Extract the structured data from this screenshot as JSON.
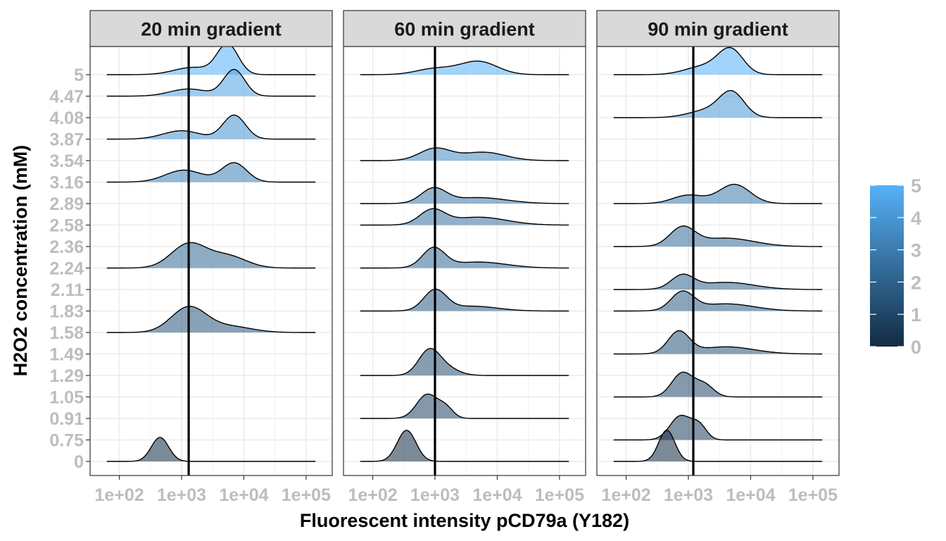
{
  "chart_data": {
    "type": "ridgeline",
    "xlabel": "Fluorescent intensity pCD79a (Y182)",
    "ylabel": "H2O2 concentration (mM)",
    "x_scale": "log10",
    "x_ticks": [
      "1e+02",
      "1e+03",
      "1e+04",
      "1e+05"
    ],
    "y_levels": [
      "0",
      "0.75",
      "0.91",
      "1.05",
      "1.29",
      "1.49",
      "1.58",
      "1.83",
      "2.11",
      "2.24",
      "2.36",
      "2.58",
      "2.89",
      "3.16",
      "3.54",
      "3.87",
      "4.08",
      "4.47",
      "5"
    ],
    "fill_scale": {
      "ticks": [
        "0",
        "1",
        "2",
        "3",
        "4",
        "5"
      ],
      "min": 0,
      "max": 5,
      "low_color": "#132B43",
      "high_color": "#56B1F7"
    },
    "grid": true,
    "legend_position": "right",
    "panels": [
      {
        "title": "20 min gradient",
        "vline_x": 1300,
        "ridges": [
          {
            "y": "0",
            "peaks": [
              {
                "x": 450,
                "h": 1.0,
                "w": 0.14
              }
            ]
          },
          {
            "y": "1.58",
            "peaks": [
              {
                "x": 1300,
                "h": 1.05,
                "w": 0.28
              },
              {
                "x": 6000,
                "h": 0.25,
                "w": 0.35
              }
            ]
          },
          {
            "y": "2.24",
            "peaks": [
              {
                "x": 1300,
                "h": 1.0,
                "w": 0.28
              },
              {
                "x": 5500,
                "h": 0.5,
                "w": 0.3
              }
            ]
          },
          {
            "y": "3.16",
            "peaks": [
              {
                "x": 1100,
                "h": 0.5,
                "w": 0.3
              },
              {
                "x": 7000,
                "h": 0.8,
                "w": 0.2
              }
            ]
          },
          {
            "y": "3.87",
            "peaks": [
              {
                "x": 1000,
                "h": 0.35,
                "w": 0.3
              },
              {
                "x": 7000,
                "h": 1.0,
                "w": 0.18
              }
            ]
          },
          {
            "y": "4.47",
            "peaks": [
              {
                "x": 1300,
                "h": 0.3,
                "w": 0.3
              },
              {
                "x": 7000,
                "h": 1.1,
                "w": 0.17
              }
            ]
          },
          {
            "y": "5",
            "peaks": [
              {
                "x": 1500,
                "h": 0.3,
                "w": 0.3
              },
              {
                "x": 5500,
                "h": 1.25,
                "w": 0.17
              }
            ]
          }
        ]
      },
      {
        "title": "60 min gradient",
        "vline_x": 1000,
        "ridges": [
          {
            "y": "0",
            "peaks": [
              {
                "x": 350,
                "h": 1.3,
                "w": 0.15
              }
            ]
          },
          {
            "y": "0.91",
            "peaks": [
              {
                "x": 750,
                "h": 1.0,
                "w": 0.17
              },
              {
                "x": 1500,
                "h": 0.4,
                "w": 0.12
              }
            ]
          },
          {
            "y": "1.29",
            "peaks": [
              {
                "x": 800,
                "h": 1.0,
                "w": 0.17
              },
              {
                "x": 1500,
                "h": 0.3,
                "w": 0.2
              }
            ]
          },
          {
            "y": "1.83",
            "peaks": [
              {
                "x": 1000,
                "h": 0.85,
                "w": 0.18
              },
              {
                "x": 4000,
                "h": 0.2,
                "w": 0.4
              }
            ]
          },
          {
            "y": "2.24",
            "peaks": [
              {
                "x": 950,
                "h": 0.8,
                "w": 0.18
              },
              {
                "x": 5000,
                "h": 0.25,
                "w": 0.45
              }
            ]
          },
          {
            "y": "2.58",
            "peaks": [
              {
                "x": 900,
                "h": 0.6,
                "w": 0.2
              },
              {
                "x": 5000,
                "h": 0.33,
                "w": 0.45
              }
            ]
          },
          {
            "y": "2.89",
            "peaks": [
              {
                "x": 950,
                "h": 0.6,
                "w": 0.2
              },
              {
                "x": 5000,
                "h": 0.25,
                "w": 0.45
              }
            ]
          },
          {
            "y": "3.54",
            "peaks": [
              {
                "x": 1000,
                "h": 0.5,
                "w": 0.25
              },
              {
                "x": 6000,
                "h": 0.35,
                "w": 0.35
              }
            ]
          },
          {
            "y": "5",
            "peaks": [
              {
                "x": 1000,
                "h": 0.25,
                "w": 0.3
              },
              {
                "x": 5000,
                "h": 0.55,
                "w": 0.3
              }
            ]
          }
        ]
      },
      {
        "title": "90 min gradient",
        "vline_x": 1200,
        "ridges": [
          {
            "y": "0",
            "peaks": [
              {
                "x": 450,
                "h": 1.3,
                "w": 0.13
              }
            ]
          },
          {
            "y": "0.75",
            "peaks": [
              {
                "x": 750,
                "h": 1.0,
                "w": 0.17
              },
              {
                "x": 1500,
                "h": 0.55,
                "w": 0.12
              }
            ]
          },
          {
            "y": "1.05",
            "peaks": [
              {
                "x": 800,
                "h": 1.0,
                "w": 0.17
              },
              {
                "x": 1800,
                "h": 0.5,
                "w": 0.15
              }
            ]
          },
          {
            "y": "1.49",
            "peaks": [
              {
                "x": 700,
                "h": 0.9,
                "w": 0.17
              },
              {
                "x": 4000,
                "h": 0.3,
                "w": 0.45
              }
            ]
          },
          {
            "y": "1.83",
            "peaks": [
              {
                "x": 800,
                "h": 0.75,
                "w": 0.18
              },
              {
                "x": 4000,
                "h": 0.3,
                "w": 0.45
              }
            ]
          },
          {
            "y": "2.11",
            "peaks": [
              {
                "x": 800,
                "h": 0.55,
                "w": 0.18
              },
              {
                "x": 4000,
                "h": 0.3,
                "w": 0.45
              }
            ]
          },
          {
            "y": "2.36",
            "peaks": [
              {
                "x": 800,
                "h": 0.75,
                "w": 0.2
              },
              {
                "x": 4000,
                "h": 0.35,
                "w": 0.45
              }
            ]
          },
          {
            "y": "2.89",
            "peaks": [
              {
                "x": 1000,
                "h": 0.35,
                "w": 0.25
              },
              {
                "x": 5500,
                "h": 0.8,
                "w": 0.25
              }
            ]
          },
          {
            "y": "4.08",
            "peaks": [
              {
                "x": 2000,
                "h": 0.3,
                "w": 0.3
              },
              {
                "x": 5000,
                "h": 1.0,
                "w": 0.2
              }
            ]
          },
          {
            "y": "5",
            "peaks": [
              {
                "x": 1800,
                "h": 0.35,
                "w": 0.3
              },
              {
                "x": 4800,
                "h": 1.0,
                "w": 0.2
              }
            ]
          }
        ]
      }
    ]
  }
}
